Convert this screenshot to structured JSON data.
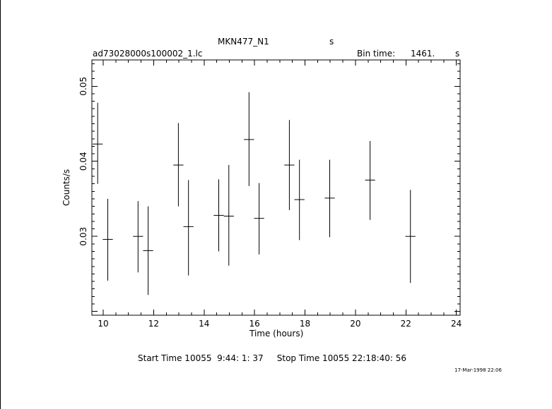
{
  "header": {
    "object": "MKN477_N1",
    "object_unit": "s",
    "filename": "ad73028000s100002_1.lc",
    "bin_time_label": "Bin time:",
    "bin_time_value": "1461.",
    "bin_time_unit": "s"
  },
  "footer": {
    "start_stop": "Start Time 10055  9:44: 1: 37     Stop Time 10055 22:18:40: 56",
    "timestamp": "17-Mar-1998 22:06"
  },
  "chart_data": {
    "type": "scatter",
    "title": "MKN477_N1",
    "xlabel": "Time (hours)",
    "ylabel": "Counts/s",
    "xlim": [
      9.55,
      24.15
    ],
    "ylim": [
      0.0195,
      0.0535
    ],
    "x_ticks": [
      10,
      12,
      14,
      16,
      18,
      20,
      22,
      24
    ],
    "x_tick_labels": [
      "10",
      "12",
      "14",
      "16",
      "18",
      "20",
      "22",
      "24"
    ],
    "y_ticks": [
      0.03,
      0.04,
      0.05
    ],
    "y_tick_labels": [
      "0.03",
      "0.04",
      "0.05"
    ],
    "grid": false,
    "series": [
      {
        "points": [
          {
            "x": 9.78,
            "xerr": 0.2,
            "y": 0.0423,
            "ylo": 0.037,
            "yhi": 0.0478
          },
          {
            "x": 10.18,
            "xerr": 0.2,
            "y": 0.0296,
            "ylo": 0.0241,
            "yhi": 0.035
          },
          {
            "x": 11.38,
            "xerr": 0.2,
            "y": 0.03,
            "ylo": 0.0252,
            "yhi": 0.0347
          },
          {
            "x": 11.78,
            "xerr": 0.2,
            "y": 0.0281,
            "ylo": 0.0222,
            "yhi": 0.034
          },
          {
            "x": 12.98,
            "xerr": 0.2,
            "y": 0.0395,
            "ylo": 0.034,
            "yhi": 0.0451
          },
          {
            "x": 13.38,
            "xerr": 0.2,
            "y": 0.0313,
            "ylo": 0.0248,
            "yhi": 0.0375
          },
          {
            "x": 14.58,
            "xerr": 0.2,
            "y": 0.0328,
            "ylo": 0.028,
            "yhi": 0.0376
          },
          {
            "x": 14.98,
            "xerr": 0.2,
            "y": 0.0327,
            "ylo": 0.0261,
            "yhi": 0.0395
          },
          {
            "x": 15.78,
            "xerr": 0.2,
            "y": 0.0429,
            "ylo": 0.0367,
            "yhi": 0.0492
          },
          {
            "x": 16.18,
            "xerr": 0.2,
            "y": 0.0324,
            "ylo": 0.0276,
            "yhi": 0.0371
          },
          {
            "x": 17.38,
            "xerr": 0.2,
            "y": 0.0395,
            "ylo": 0.0335,
            "yhi": 0.0455
          },
          {
            "x": 17.78,
            "xerr": 0.2,
            "y": 0.0349,
            "ylo": 0.0295,
            "yhi": 0.0402
          },
          {
            "x": 18.98,
            "xerr": 0.2,
            "y": 0.0351,
            "ylo": 0.0299,
            "yhi": 0.0402
          },
          {
            "x": 20.58,
            "xerr": 0.2,
            "y": 0.0375,
            "ylo": 0.0322,
            "yhi": 0.0427
          },
          {
            "x": 22.18,
            "xerr": 0.2,
            "y": 0.03,
            "ylo": 0.0238,
            "yhi": 0.0362
          }
        ]
      }
    ]
  }
}
